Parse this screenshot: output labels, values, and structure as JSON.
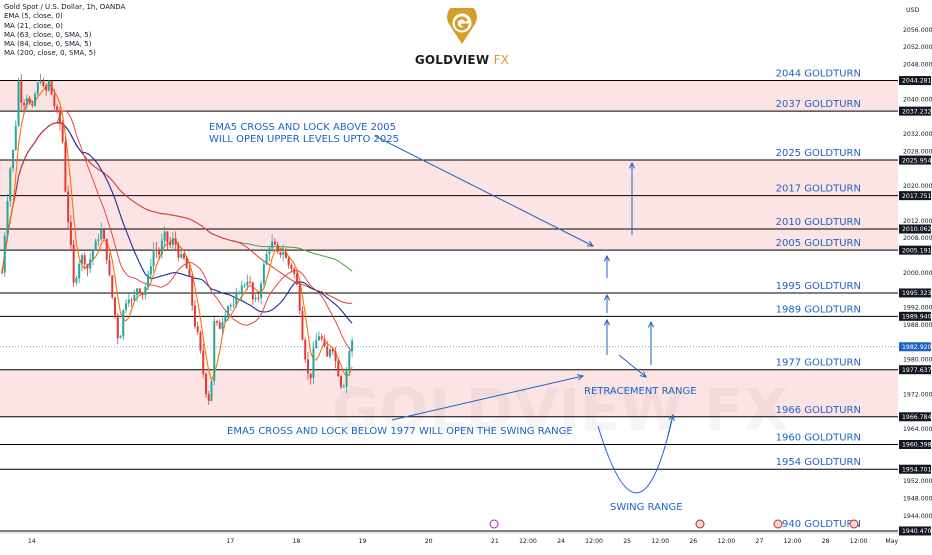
{
  "header": {
    "symbol": "Gold Spot / U.S. Dollar, 1h, OANDA",
    "indicators": [
      "EMA (5, close, 0)",
      "MA (21, close, 0)",
      "MA (63, close, 0, SMA, 5)",
      "MA (84, close, 0, SMA, 5)",
      "MA (200, close, 0, SMA, 5)"
    ],
    "currency": "USD"
  },
  "brand": {
    "name": "GOLDVIEW",
    "suffix": "FX",
    "watermark": "GOLDVIEW FX"
  },
  "colors": {
    "bull": "#26a69a",
    "bear": "#e53935",
    "ema5": "#ff6f00",
    "ma21": "#e53935",
    "ma63": "#1c2d99",
    "ma84": "#e53935",
    "ma200": "#43a047",
    "zone": "#fde4e4",
    "annotation": "#1e63c4",
    "price_badge": "#131722",
    "brand": "#d4a02a"
  },
  "chart_data": {
    "type": "candlestick",
    "ylim": [
      1940,
      2061
    ],
    "y_ticks": [
      {
        "value": 2056,
        "label": "2056.000"
      },
      {
        "value": 2052,
        "label": "2052.000"
      },
      {
        "value": 2048,
        "label": "2048.000"
      },
      {
        "value": 2040,
        "label": "2040.000"
      },
      {
        "value": 2032,
        "label": "2032.000"
      },
      {
        "value": 2028,
        "label": "2028.000"
      },
      {
        "value": 2020,
        "label": "2020.000"
      },
      {
        "value": 2012,
        "label": "2012.000"
      },
      {
        "value": 2008,
        "label": "2008.000"
      },
      {
        "value": 2000,
        "label": "2000.000"
      },
      {
        "value": 1992,
        "label": "1992.000"
      },
      {
        "value": 1988,
        "label": "1988.000"
      },
      {
        "value": 1980,
        "label": "1980.000"
      },
      {
        "value": 1972,
        "label": "1972.000"
      },
      {
        "value": 1964,
        "label": "1964.000"
      },
      {
        "value": 1952,
        "label": "1952.000"
      },
      {
        "value": 1948,
        "label": "1948.000"
      },
      {
        "value": 1944,
        "label": "1944.000"
      }
    ],
    "x_ticks": [
      {
        "t": 14,
        "label": "14"
      },
      {
        "t": 17,
        "label": "17"
      },
      {
        "t": 18,
        "label": "18"
      },
      {
        "t": 19,
        "label": "19"
      },
      {
        "t": 20,
        "label": "20"
      },
      {
        "t": 21,
        "label": "21"
      },
      {
        "t": 21.5,
        "label": "12:00"
      },
      {
        "t": 22,
        "label": "24"
      },
      {
        "t": 22.5,
        "label": "12:00"
      },
      {
        "t": 23,
        "label": "25"
      },
      {
        "t": 23.5,
        "label": "12:00"
      },
      {
        "t": 24,
        "label": "26"
      },
      {
        "t": 24.5,
        "label": "12:00"
      },
      {
        "t": 25,
        "label": "27"
      },
      {
        "t": 25.5,
        "label": "12:00"
      },
      {
        "t": 26,
        "label": "28"
      },
      {
        "t": 26.5,
        "label": "12:00"
      },
      {
        "t": 27,
        "label": "May"
      }
    ],
    "levels": [
      {
        "value": 2044.281,
        "badge": "2044.281",
        "label": "2044 GOLDTURN"
      },
      {
        "value": 2037.232,
        "badge": "2037.232",
        "label": "2037 GOLDTURN"
      },
      {
        "value": 2025.954,
        "badge": "2025.954",
        "label": "2025 GOLDTURN"
      },
      {
        "value": 2017.751,
        "badge": "2017.751",
        "label": "2017 GOLDTURN"
      },
      {
        "value": 2010.062,
        "badge": "2010.062",
        "label": "2010 GOLDTURN"
      },
      {
        "value": 2005.191,
        "badge": "2005.191",
        "label": "2005 GOLDTURN"
      },
      {
        "value": 1995.323,
        "badge": "1995.323",
        "label": "1995 GOLDTURN"
      },
      {
        "value": 1989.94,
        "badge": "1989.940",
        "label": "1989 GOLDTURN"
      },
      {
        "value": 1977.637,
        "badge": "1977.637",
        "label": "1977 GOLDTURN"
      },
      {
        "value": 1966.784,
        "badge": "1966.784",
        "label": "1966 GOLDTURN"
      },
      {
        "value": 1960.398,
        "badge": "1960.398",
        "label": "1960 GOLDTURN"
      },
      {
        "value": 1954.701,
        "badge": "1954.701",
        "label": "1954 GOLDTURN"
      },
      {
        "value": 1940.47,
        "badge": "1940.470",
        "label": "1940 GOLDTURN"
      }
    ],
    "zones": [
      [
        2037.232,
        2044.281
      ],
      [
        2005.191,
        2025.954
      ],
      [
        1966.784,
        1977.637
      ]
    ],
    "current_price": {
      "value": 1982.92,
      "badge": "1982.920"
    },
    "annotations": [
      {
        "id": "upper-note",
        "lines": [
          "EMA5 CROSS AND LOCK ABOVE 2005",
          "WILL OPEN UPPER LEVELS UPTO 2025"
        ]
      },
      {
        "id": "lower-note",
        "lines": [
          "EMA5 CROSS AND LOCK BELOW 1977 WILL OPEN THE SWING RANGE"
        ]
      },
      {
        "id": "retracement",
        "lines": [
          "RETRACEMENT RANGE"
        ]
      },
      {
        "id": "swing",
        "lines": [
          "SWING RANGE"
        ]
      }
    ],
    "close_path": [
      [
        13.55,
        2000
      ],
      [
        13.62,
        2015
      ],
      [
        13.68,
        2025
      ],
      [
        13.74,
        2030
      ],
      [
        13.8,
        2044
      ],
      [
        13.86,
        2038
      ],
      [
        13.92,
        2041
      ],
      [
        14.0,
        2037
      ],
      [
        14.06,
        2042
      ],
      [
        14.13,
        2045
      ],
      [
        14.2,
        2041
      ],
      [
        14.26,
        2044
      ],
      [
        14.33,
        2039
      ],
      [
        14.4,
        2036
      ],
      [
        14.46,
        2032
      ],
      [
        14.52,
        2016
      ],
      [
        14.58,
        2008
      ],
      [
        14.64,
        1996
      ],
      [
        14.7,
        2002
      ],
      [
        14.77,
        2004
      ],
      [
        14.84,
        2001
      ],
      [
        14.92,
        2005
      ],
      [
        15.0,
        2008
      ],
      [
        15.06,
        2010
      ],
      [
        15.13,
        2004
      ],
      [
        15.2,
        1996
      ],
      [
        15.26,
        1990
      ],
      [
        15.32,
        1983
      ],
      [
        15.38,
        1991
      ],
      [
        15.45,
        1995
      ],
      [
        15.52,
        1993
      ],
      [
        15.6,
        1997
      ],
      [
        15.68,
        1995
      ],
      [
        15.76,
        1999
      ],
      [
        15.85,
        2006
      ],
      [
        15.92,
        2004
      ],
      [
        16.0,
        2009
      ],
      [
        16.08,
        2006
      ],
      [
        16.15,
        2008
      ],
      [
        16.22,
        2004
      ],
      [
        16.3,
        2003
      ],
      [
        16.38,
        1999
      ],
      [
        16.45,
        1989
      ],
      [
        16.52,
        1985
      ],
      [
        16.58,
        1978
      ],
      [
        16.64,
        1972
      ],
      [
        16.7,
        1970
      ],
      [
        16.76,
        1989
      ],
      [
        16.83,
        1987
      ],
      [
        16.9,
        1990
      ],
      [
        16.98,
        1993
      ],
      [
        17.05,
        1992
      ],
      [
        17.12,
        1996
      ],
      [
        17.2,
        1997
      ],
      [
        17.28,
        1999
      ],
      [
        17.35,
        1993
      ],
      [
        17.42,
        1994
      ],
      [
        17.5,
        2001
      ],
      [
        17.58,
        2006
      ],
      [
        17.65,
        2007
      ],
      [
        17.72,
        2004
      ],
      [
        17.8,
        2005
      ],
      [
        17.87,
        2002
      ],
      [
        17.94,
        2001
      ],
      [
        18.0,
        1998
      ],
      [
        18.05,
        1992
      ],
      [
        18.1,
        1984
      ],
      [
        18.16,
        1978
      ],
      [
        18.2,
        1974
      ],
      [
        18.26,
        1982
      ],
      [
        18.33,
        1986
      ],
      [
        18.4,
        1984
      ],
      [
        18.46,
        1980
      ],
      [
        18.53,
        1984
      ],
      [
        18.6,
        1979
      ],
      [
        18.66,
        1975
      ],
      [
        18.7,
        1973
      ],
      [
        18.75,
        1977
      ],
      [
        18.8,
        1982
      ],
      [
        18.86,
        1985
      ]
    ]
  }
}
